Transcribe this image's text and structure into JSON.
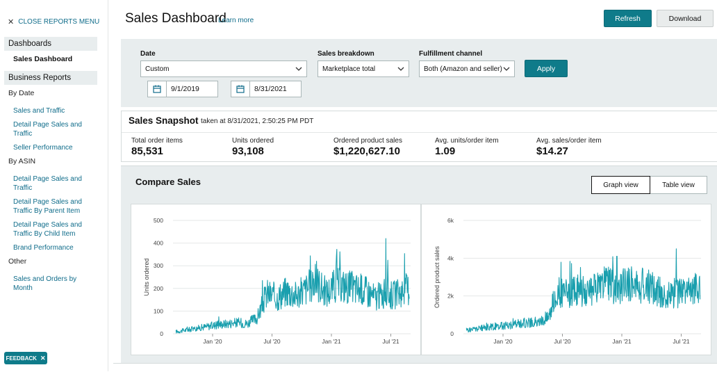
{
  "sidebar": {
    "close_label": "CLOSE REPORTS MENU",
    "dashboards_header": "Dashboards",
    "active_item": "Sales Dashboard",
    "business_header": "Business Reports",
    "groups": [
      {
        "label": "By Date",
        "links": [
          "Sales and Traffic",
          "Detail Page Sales and Traffic",
          "Seller Performance"
        ]
      },
      {
        "label": "By ASIN",
        "links": [
          "Detail Page Sales and Traffic",
          "Detail Page Sales and Traffic By Parent Item",
          "Detail Page Sales and Traffic By Child Item",
          "Brand Performance"
        ]
      },
      {
        "label": "Other",
        "links": [
          "Sales and Orders by Month"
        ]
      }
    ],
    "feedback_label": "FEEDBACK"
  },
  "header": {
    "title": "Sales Dashboard",
    "learn_more": "Learn more",
    "refresh_label": "Refresh",
    "download_label": "Download"
  },
  "filters": {
    "date_label": "Date",
    "date_value": "Custom",
    "start_date": "9/1/2019",
    "end_date": "8/31/2021",
    "breakdown_label": "Sales breakdown",
    "breakdown_value": "Marketplace total",
    "channel_label": "Fulfillment channel",
    "channel_value": "Both (Amazon and seller)",
    "apply_label": "Apply"
  },
  "snapshot": {
    "title": "Sales Snapshot",
    "taken_at": "taken at 8/31/2021, 2:50:25 PM PDT",
    "metrics": [
      {
        "label": "Total order items",
        "value": "85,531"
      },
      {
        "label": "Units ordered",
        "value": "93,108"
      },
      {
        "label": "Ordered product sales",
        "value": "$1,220,627.10"
      },
      {
        "label": "Avg. units/order item",
        "value": "1.09"
      },
      {
        "label": "Avg. sales/order item",
        "value": "$14.27"
      }
    ]
  },
  "compare": {
    "title": "Compare Sales",
    "graph_view_label": "Graph view",
    "table_view_label": "Table view"
  },
  "colors": {
    "accent": "#0f7b8a",
    "series": "#1a9fae",
    "panel": "#e8edee",
    "link": "#0f6c8a"
  },
  "chart_data": [
    {
      "type": "line",
      "title": "",
      "xlabel": "",
      "ylabel": "Units ordered",
      "ylim": [
        0,
        500
      ],
      "y_ticks": [
        "0",
        "100",
        "200",
        "300",
        "400",
        "500"
      ],
      "x_tick_labels": [
        "Jan '20",
        "Jul '20",
        "Jan '21",
        "Jul '21"
      ],
      "x_range": [
        "9/1/2019",
        "8/31/2021"
      ],
      "series": [
        {
          "name": "Units ordered",
          "x": [
            "2019-09",
            "2019-11",
            "2020-01",
            "2020-03",
            "2020-04",
            "2020-05",
            "2020-06",
            "2020-07",
            "2020-08",
            "2020-09",
            "2020-10",
            "2020-11",
            "2020-12",
            "2021-01",
            "2021-02",
            "2021-03",
            "2021-04",
            "2021-05",
            "2021-06",
            "2021-07",
            "2021-08"
          ],
          "values": [
            10,
            25,
            40,
            50,
            45,
            70,
            180,
            160,
            190,
            170,
            200,
            230,
            180,
            220,
            210,
            200,
            190,
            160,
            180,
            170,
            200
          ]
        }
      ],
      "peaks": [
        {
          "x": "2021-06",
          "value": 420
        },
        {
          "x": "2020-11",
          "value": 320
        }
      ]
    },
    {
      "type": "line",
      "title": "",
      "xlabel": "",
      "ylabel": "Ordered product sales",
      "ylim": [
        0,
        6000
      ],
      "y_ticks": [
        "0",
        "2k",
        "4k",
        "6k"
      ],
      "x_tick_labels": [
        "Jan '20",
        "Jul '20",
        "Jan '21",
        "Jul '21"
      ],
      "x_range": [
        "9/1/2019",
        "8/31/2021"
      ],
      "series": [
        {
          "name": "Ordered product sales",
          "x": [
            "2019-09",
            "2019-11",
            "2020-01",
            "2020-03",
            "2020-04",
            "2020-05",
            "2020-06",
            "2020-07",
            "2020-08",
            "2020-09",
            "2020-10",
            "2020-11",
            "2020-12",
            "2021-01",
            "2021-02",
            "2021-03",
            "2021-04",
            "2021-05",
            "2021-06",
            "2021-07",
            "2021-08"
          ],
          "values": [
            200,
            350,
            450,
            600,
            550,
            900,
            2200,
            2000,
            2400,
            2100,
            2500,
            2800,
            2300,
            2700,
            2600,
            2500,
            2300,
            2000,
            2200,
            2100,
            2500
          ]
        }
      ],
      "peaks": [
        {
          "x": "2021-06",
          "value": 4500
        },
        {
          "x": "2020-12",
          "value": 4100
        }
      ]
    }
  ]
}
